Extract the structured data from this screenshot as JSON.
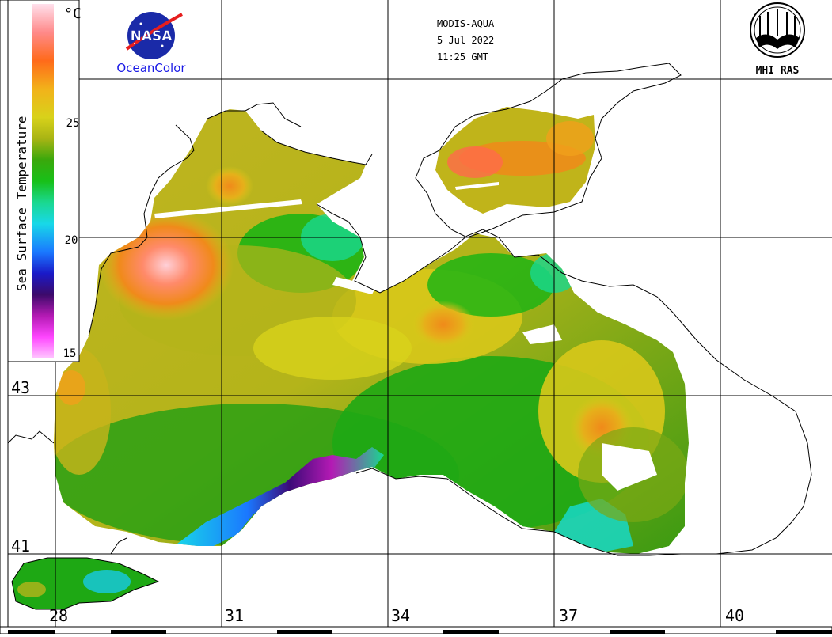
{
  "header": {
    "sensor": "MODIS-AQUA",
    "date": "5 Jul 2022",
    "time": "11:25 GMT"
  },
  "logos": {
    "nasa_text": "NASA",
    "oceancolor_text": "OceanColor",
    "mhi_text": "MHI RAS"
  },
  "legend": {
    "title": "Sea Surface Temperature",
    "unit": "°C",
    "ticks": [
      "25",
      "20",
      "15"
    ],
    "colors": [
      "#ffd9e6",
      "#ff8a8a",
      "#ff6a1a",
      "#f2a31a",
      "#e6d21a",
      "#c8c81a",
      "#6aa80a",
      "#18b418",
      "#1ad280",
      "#18d2e6",
      "#1a6aff",
      "#1a1ac8",
      "#3c0a78",
      "#a01aa0",
      "#ff1aff",
      "#ffb4ff"
    ]
  },
  "axes": {
    "longitudes": [
      "28",
      "31",
      "34",
      "37",
      "40"
    ],
    "latitudes": [
      "43",
      "41"
    ]
  }
}
